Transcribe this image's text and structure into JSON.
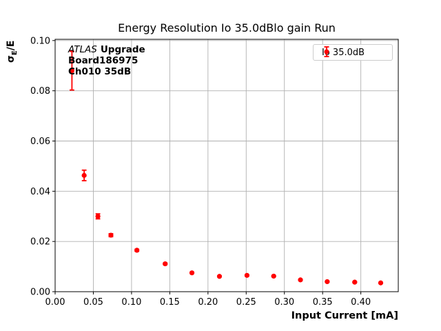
{
  "chart_data": {
    "type": "scatter",
    "title": "Energy Resolution Io 35.0dBlo gain Run",
    "xlabel": "Input Current [mA]",
    "ylabel": "σE/E",
    "ylabel_parts": {
      "sigma": "σ",
      "subscript": "E",
      "rest": "/E"
    },
    "xlim": [
      0.0,
      0.449
    ],
    "ylim": [
      0.0,
      0.1005
    ],
    "xticks": [
      0.0,
      0.05,
      0.1,
      0.15,
      0.2,
      0.25,
      0.3,
      0.35,
      0.4
    ],
    "yticks": [
      0.0,
      0.02,
      0.04,
      0.06,
      0.08,
      0.1
    ],
    "grid": true,
    "legend": {
      "position": "upper-right",
      "entries": [
        {
          "label": "Io 35.0dB",
          "color": "#ff0000",
          "marker": "errorbar-dot"
        }
      ]
    },
    "annotation": {
      "line1_italic": "ATLAS",
      "line1_bold": "Upgrade",
      "line2": "Board186975",
      "line3": "Ch010 35dB"
    },
    "series": [
      {
        "name": "Io 35.0dB",
        "color": "#ff0000",
        "marker": "circle",
        "x": [
          0.022,
          0.038,
          0.056,
          0.073,
          0.107,
          0.144,
          0.179,
          0.215,
          0.251,
          0.286,
          0.321,
          0.356,
          0.392,
          0.426
        ],
        "y": [
          0.088,
          0.0463,
          0.03,
          0.0225,
          0.0165,
          0.0111,
          0.0075,
          0.0061,
          0.0065,
          0.0062,
          0.0047,
          0.004,
          0.0038,
          0.0035
        ],
        "yerr": [
          0.0077,
          0.0021,
          0.001,
          0.0006,
          0.0004,
          0.0003,
          0.0002,
          0.0002,
          0.0002,
          0.0002,
          0.0002,
          0.0002,
          0.0002,
          0.0002
        ]
      }
    ],
    "colors": {
      "series": "#ff0000",
      "grid": "#b0b0b0",
      "frame": "#000000",
      "background": "#ffffff",
      "legend_border": "#cccccc"
    }
  }
}
